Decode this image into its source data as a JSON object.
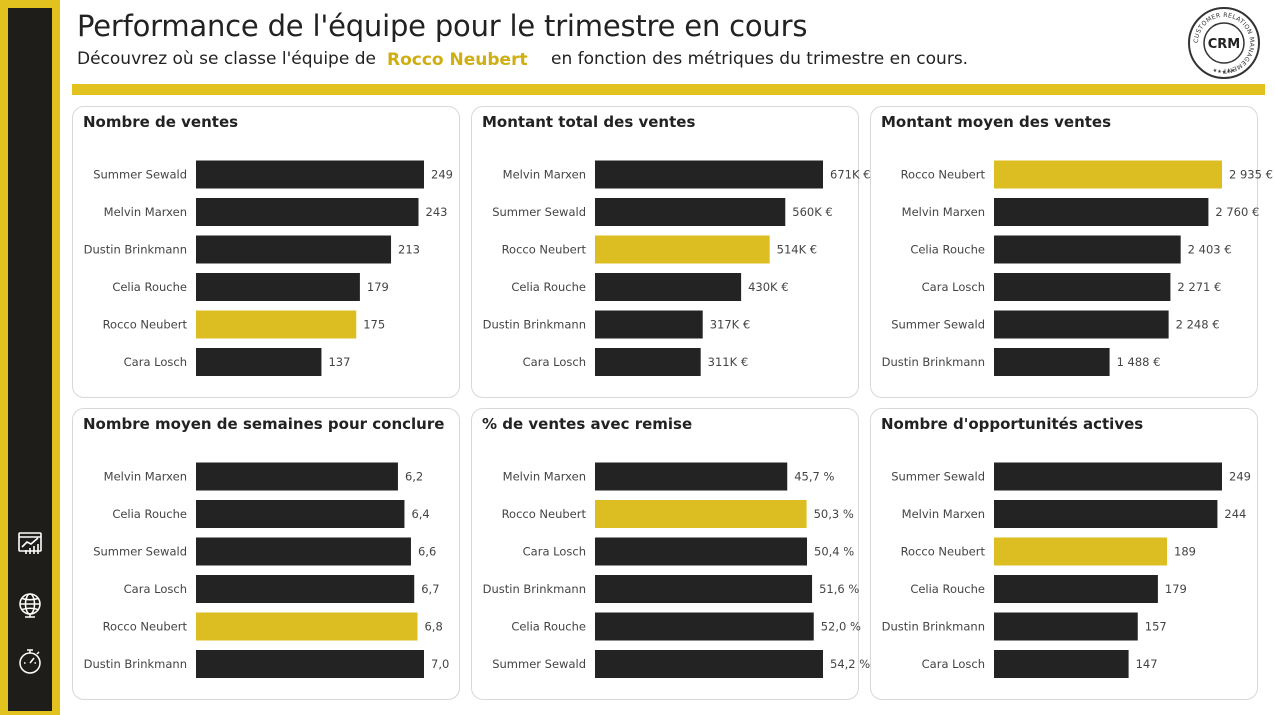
{
  "header": {
    "title": "Performance de l'équipe pour le trimestre en cours",
    "subtitle_prefix": "Découvrez où se classe l'équipe de",
    "selected_rep": "Rocco Neubert",
    "subtitle_suffix": "en fonction des métriques du trimestre en cours."
  },
  "logo": {
    "text": "CRM",
    "ring_text": "CUSTOMER RELATION MANAGEMENT"
  },
  "sidebar": {
    "icons": [
      "dashboard-chart-icon",
      "globe-icon",
      "stopwatch-icon"
    ]
  },
  "colors": {
    "accent": "#e2c21f",
    "highlight_bar": "#dcbd22",
    "bar": "#232323",
    "sidebar": "#1f1d1a"
  },
  "chart_data": [
    {
      "type": "bar",
      "orientation": "horizontal",
      "title": "Nombre de ventes",
      "categories": [
        "Summer Sewald",
        "Melvin Marxen",
        "Dustin Brinkmann",
        "Celia Rouche",
        "Rocco Neubert",
        "Cara Losch"
      ],
      "values": [
        249,
        243,
        213,
        179,
        175,
        137
      ],
      "value_labels": [
        "249",
        "243",
        "213",
        "179",
        "175",
        "137"
      ],
      "highlight": "Rocco Neubert",
      "xlim": [
        0,
        249
      ]
    },
    {
      "type": "bar",
      "orientation": "horizontal",
      "title": "Montant total des ventes",
      "categories": [
        "Melvin Marxen",
        "Summer Sewald",
        "Rocco Neubert",
        "Celia Rouche",
        "Dustin Brinkmann",
        "Cara Losch"
      ],
      "values": [
        671000,
        560000,
        514000,
        430000,
        317000,
        311000
      ],
      "value_labels": [
        "671K €",
        "560K €",
        "514K €",
        "430K €",
        "317K €",
        "311K €"
      ],
      "highlight": "Rocco Neubert",
      "xlim": [
        0,
        671000
      ]
    },
    {
      "type": "bar",
      "orientation": "horizontal",
      "title": "Montant moyen des ventes",
      "categories": [
        "Rocco Neubert",
        "Melvin Marxen",
        "Celia Rouche",
        "Cara Losch",
        "Summer Sewald",
        "Dustin Brinkmann"
      ],
      "values": [
        2935,
        2760,
        2403,
        2271,
        2248,
        1488
      ],
      "value_labels": [
        "2 935 €",
        "2 760 €",
        "2 403 €",
        "2 271 €",
        "2 248 €",
        "1 488 €"
      ],
      "highlight": "Rocco Neubert",
      "xlim": [
        0,
        2935
      ]
    },
    {
      "type": "bar",
      "orientation": "horizontal",
      "title": "Nombre moyen de semaines pour conclure",
      "categories": [
        "Melvin Marxen",
        "Celia Rouche",
        "Summer Sewald",
        "Cara Losch",
        "Rocco Neubert",
        "Dustin Brinkmann"
      ],
      "values": [
        6.2,
        6.4,
        6.6,
        6.7,
        6.8,
        7.0
      ],
      "value_labels": [
        "6,2",
        "6,4",
        "6,6",
        "6,7",
        "6,8",
        "7,0"
      ],
      "highlight": "Rocco Neubert",
      "xlim": [
        0,
        7.0
      ]
    },
    {
      "type": "bar",
      "orientation": "horizontal",
      "title": "% de ventes avec remise",
      "categories": [
        "Melvin Marxen",
        "Rocco Neubert",
        "Cara Losch",
        "Dustin Brinkmann",
        "Celia Rouche",
        "Summer Sewald"
      ],
      "values": [
        45.7,
        50.3,
        50.4,
        51.6,
        52.0,
        54.2
      ],
      "value_labels": [
        "45,7 %",
        "50,3 %",
        "50,4 %",
        "51,6 %",
        "52,0 %",
        "54,2 %"
      ],
      "highlight": "Rocco Neubert",
      "xlim": [
        0,
        54.2
      ]
    },
    {
      "type": "bar",
      "orientation": "horizontal",
      "title": "Nombre d'opportunités actives",
      "categories": [
        "Summer Sewald",
        "Melvin Marxen",
        "Rocco Neubert",
        "Celia Rouche",
        "Dustin Brinkmann",
        "Cara Losch"
      ],
      "values": [
        249,
        244,
        189,
        179,
        157,
        147
      ],
      "value_labels": [
        "249",
        "244",
        "189",
        "179",
        "157",
        "147"
      ],
      "highlight": "Rocco Neubert",
      "xlim": [
        0,
        249
      ]
    }
  ]
}
